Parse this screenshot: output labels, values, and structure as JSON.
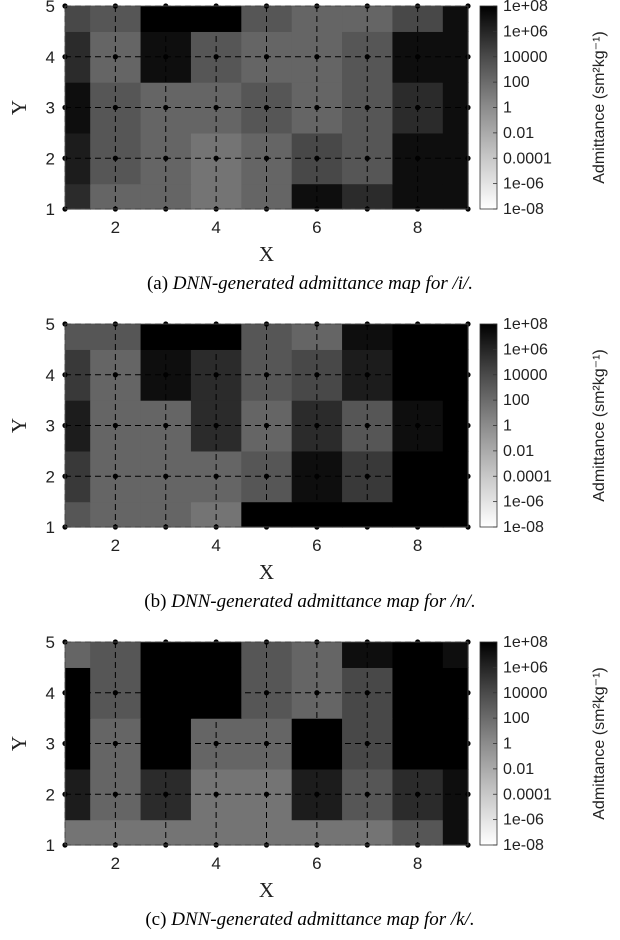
{
  "colors": {
    "high": "#000000",
    "low": "#ffffff",
    "grid": "#000000"
  },
  "chart_data": [
    {
      "type": "heatmap",
      "caption_prefix": "(a) ",
      "caption_text": "DNN-generated admittance map for /i/.",
      "xlabel": "X",
      "ylabel": "Y",
      "xlim": [
        1,
        9
      ],
      "ylim": [
        1,
        5
      ],
      "xticks": [
        "2",
        "4",
        "6",
        "8"
      ],
      "yticks": [
        "1",
        "2",
        "3",
        "4",
        "5"
      ],
      "x": [
        1,
        2,
        3,
        4,
        5,
        6,
        7,
        8,
        9
      ],
      "y": [
        1,
        2,
        3,
        4,
        5
      ],
      "z_log10": [
        [
          5,
          1,
          1,
          0,
          1,
          7,
          5,
          7,
          7
        ],
        [
          6,
          2,
          1,
          0,
          1,
          3,
          2,
          7,
          7
        ],
        [
          7,
          2,
          1,
          1,
          2,
          1,
          2,
          5,
          7
        ],
        [
          5,
          1,
          7,
          2,
          1,
          1,
          2,
          7,
          7
        ],
        [
          3,
          2,
          8,
          8,
          2,
          1,
          1,
          3,
          7
        ]
      ],
      "colorbar": {
        "label": "Admittance (sm²kg⁻¹)",
        "ticks": [
          "1e+08",
          "1e+06",
          "10000",
          "100",
          "1",
          "0.01",
          "0.0001",
          "1e-06",
          "1e-08"
        ],
        "range_log10": [
          -8,
          8
        ]
      }
    },
    {
      "type": "heatmap",
      "caption_prefix": "(b) ",
      "caption_text": "DNN-generated admittance map for /n/.",
      "xlabel": "X",
      "ylabel": "Y",
      "xlim": [
        1,
        9
      ],
      "ylim": [
        1,
        5
      ],
      "xticks": [
        "2",
        "4",
        "6",
        "8"
      ],
      "yticks": [
        "1",
        "2",
        "3",
        "4",
        "5"
      ],
      "x": [
        1,
        2,
        3,
        4,
        5,
        6,
        7,
        8,
        9
      ],
      "y": [
        1,
        2,
        3,
        4,
        5
      ],
      "z_log10": [
        [
          2,
          1,
          1,
          0,
          8,
          8,
          8,
          8,
          8
        ],
        [
          4,
          1,
          1,
          1,
          2,
          7,
          4,
          8,
          8
        ],
        [
          6,
          1,
          1,
          5,
          1,
          5,
          2,
          7,
          8
        ],
        [
          4,
          1,
          7,
          5,
          2,
          3,
          6,
          8,
          8
        ],
        [
          2,
          2,
          8,
          8,
          2,
          1,
          7,
          8,
          8
        ]
      ],
      "colorbar": {
        "label": "Admittance (sm²kg⁻¹)",
        "ticks": [
          "1e+08",
          "1e+06",
          "10000",
          "100",
          "1",
          "0.01",
          "0.0001",
          "1e-06",
          "1e-08"
        ],
        "range_log10": [
          -8,
          8
        ]
      }
    },
    {
      "type": "heatmap",
      "caption_prefix": "(c) ",
      "caption_text": "DNN-generated admittance map for /k/.",
      "xlabel": "X",
      "ylabel": "Y",
      "xlim": [
        1,
        9
      ],
      "ylim": [
        1,
        5
      ],
      "xticks": [
        "2",
        "4",
        "6",
        "8"
      ],
      "yticks": [
        "1",
        "2",
        "3",
        "4",
        "5"
      ],
      "x": [
        1,
        2,
        3,
        4,
        5,
        6,
        7,
        8,
        9
      ],
      "y": [
        1,
        2,
        3,
        4,
        5
      ],
      "z_log10": [
        [
          0,
          0,
          0,
          0,
          0,
          0,
          0,
          2,
          7
        ],
        [
          6,
          1,
          5,
          0,
          0,
          6,
          2,
          5,
          7
        ],
        [
          8,
          1,
          8,
          1,
          1,
          8,
          3,
          8,
          8
        ],
        [
          8,
          2,
          8,
          8,
          2,
          1,
          3,
          8,
          8
        ],
        [
          1,
          2,
          8,
          8,
          2,
          1,
          7,
          8,
          7
        ]
      ],
      "colorbar": {
        "label": "Admittance (sm²kg⁻¹)",
        "ticks": [
          "1e+08",
          "1e+06",
          "10000",
          "100",
          "1",
          "0.01",
          "0.0001",
          "1e-06",
          "1e-08"
        ],
        "range_log10": [
          -8,
          8
        ]
      }
    }
  ]
}
